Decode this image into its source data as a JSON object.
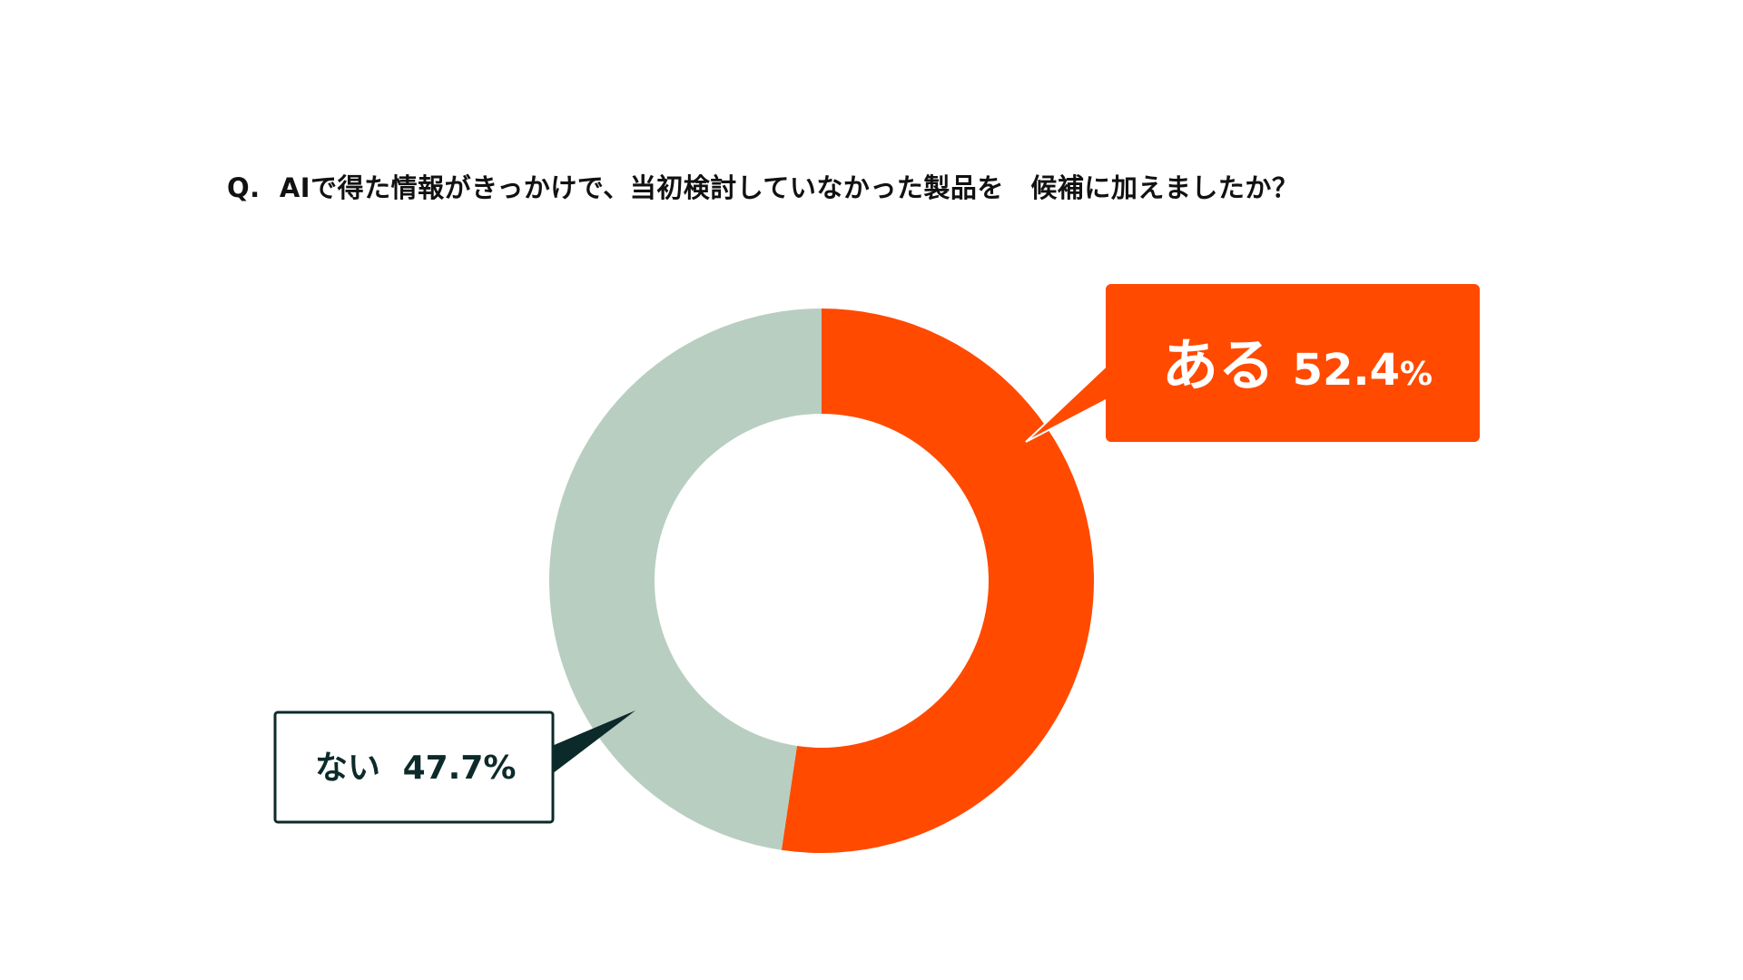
{
  "question": "Q.  AIで得た情報がきっかけで、当初検討していなかった製品を　候補に加えましたか？",
  "colors": {
    "aru": "#FF4A00",
    "nai": "#B8CEC1",
    "nai_border": "#0D2A2A",
    "text_dark": "#0D2A2A",
    "text_light": "#FFFFFF"
  },
  "chart_data": {
    "type": "pie",
    "donut": true,
    "title": "Q.  AIで得た情報がきっかけで、当初検討していなかった製品を　候補に加えましたか？",
    "categories": [
      "ある",
      "ない"
    ],
    "values": [
      52.4,
      47.7
    ],
    "unit": "%",
    "labels": [
      {
        "category": "ある",
        "value_text": "52.4",
        "unit": "%"
      },
      {
        "category": "ない",
        "value_text": "47.7",
        "unit": "%"
      }
    ]
  }
}
